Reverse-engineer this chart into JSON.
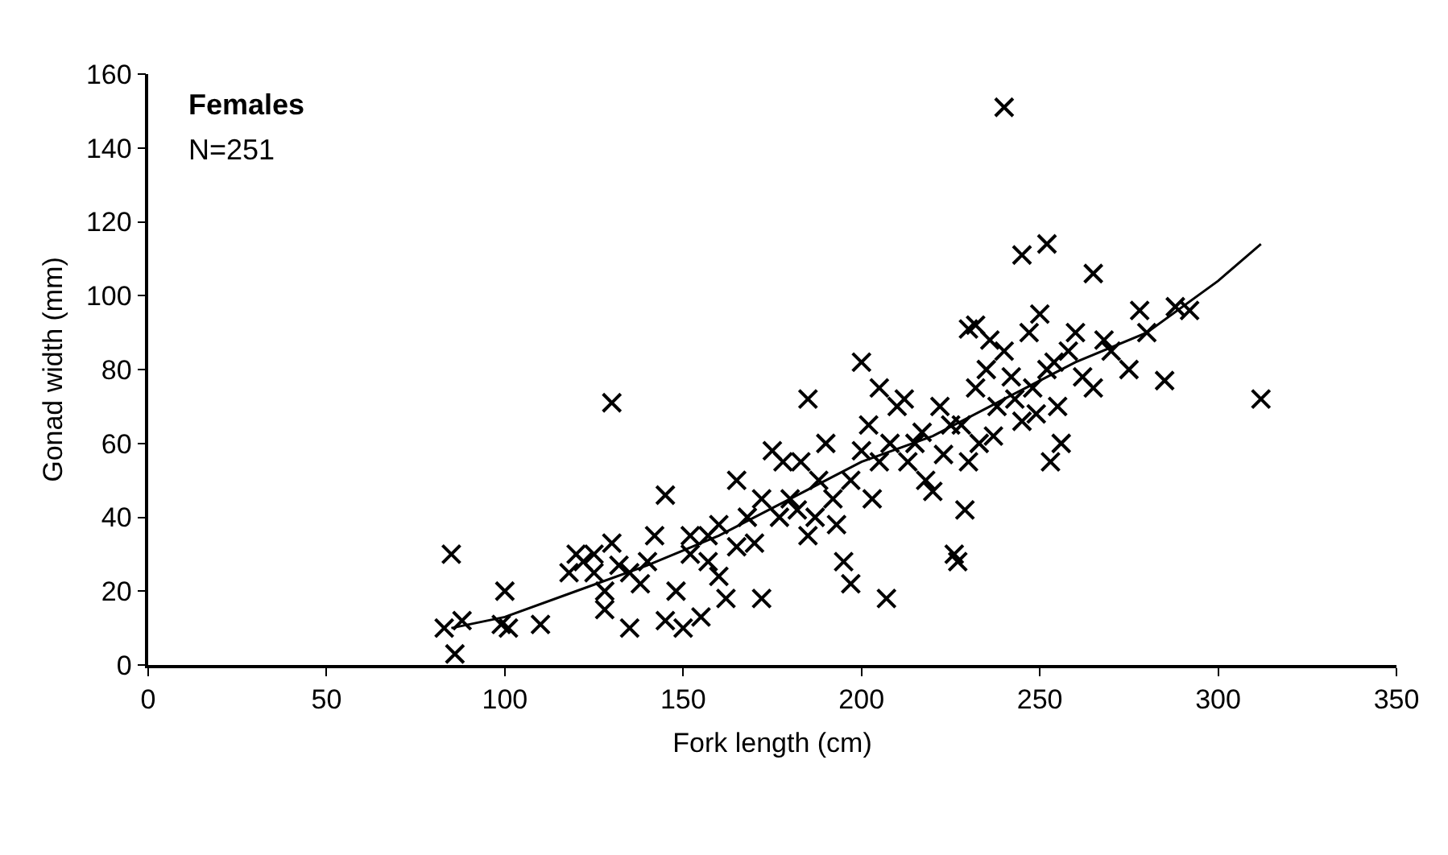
{
  "chart_data": {
    "type": "scatter",
    "xlabel": "Fork length (cm)",
    "ylabel": "Gonad width (mm)",
    "annotations": [
      "Females",
      "N=251"
    ],
    "xlim": [
      0,
      350
    ],
    "xticks": [
      0,
      50,
      100,
      150,
      200,
      250,
      300,
      350
    ],
    "ylim": [
      0,
      160
    ],
    "yticks": [
      0,
      20,
      40,
      60,
      80,
      100,
      120,
      140,
      160
    ],
    "grid": false,
    "legend": false,
    "marker": "cross",
    "series": [
      {
        "color": "#000000",
        "x": [
          85,
          86,
          83,
          88,
          100,
          99,
          101,
          110,
          130,
          240,
          312,
          285,
          292,
          288,
          265,
          245,
          252,
          230,
          232,
          120,
          122,
          125,
          128,
          130,
          132,
          135,
          135,
          138,
          140,
          142,
          145,
          145,
          148,
          150,
          152,
          155,
          157,
          160,
          160,
          162,
          165,
          168,
          170,
          172,
          175,
          178,
          180,
          182,
          185,
          185,
          188,
          190,
          192,
          195,
          197,
          200,
          200,
          202,
          205,
          205,
          207,
          210,
          212,
          215,
          218,
          220,
          222,
          225,
          226,
          227,
          229,
          230,
          232,
          235,
          236,
          238,
          240,
          242,
          245,
          247,
          248,
          250,
          252,
          253,
          255,
          256,
          258,
          260,
          262,
          265,
          268,
          270,
          275,
          278,
          280,
          128,
          125,
          118,
          152,
          157,
          165,
          172,
          177,
          183,
          187,
          193,
          197,
          203,
          208,
          213,
          217,
          223,
          228,
          233,
          237,
          243,
          249,
          254
        ],
        "values": [
          30,
          3,
          10,
          12,
          20,
          11,
          10,
          11,
          71,
          151,
          72,
          77,
          96,
          97,
          106,
          111,
          114,
          91,
          92,
          30,
          28,
          25,
          20,
          33,
          27,
          25,
          10,
          22,
          28,
          35,
          46,
          12,
          20,
          10,
          30,
          13,
          35,
          38,
          24,
          18,
          32,
          40,
          33,
          18,
          58,
          55,
          45,
          42,
          72,
          35,
          50,
          60,
          45,
          28,
          22,
          58,
          82,
          65,
          75,
          55,
          18,
          70,
          72,
          60,
          50,
          47,
          70,
          65,
          30,
          28,
          42,
          55,
          75,
          80,
          88,
          70,
          85,
          78,
          66,
          90,
          75,
          95,
          80,
          55,
          70,
          60,
          85,
          90,
          78,
          75,
          88,
          85,
          80,
          96,
          90,
          15,
          30,
          25,
          35,
          28,
          50,
          45,
          40,
          55,
          40,
          38,
          50,
          45,
          60,
          55,
          63,
          57,
          65,
          60,
          62,
          72,
          68,
          82
        ]
      },
      {
        "type": "line",
        "color": "#000000",
        "marker": "none",
        "line_style": "solid",
        "x": [
          85,
          100,
          120,
          140,
          160,
          180,
          200,
          220,
          240,
          260,
          280,
          300,
          312
        ],
        "values": [
          10,
          13,
          20,
          27,
          35,
          45,
          55,
          62,
          72,
          82,
          90,
          104,
          114
        ]
      }
    ]
  }
}
